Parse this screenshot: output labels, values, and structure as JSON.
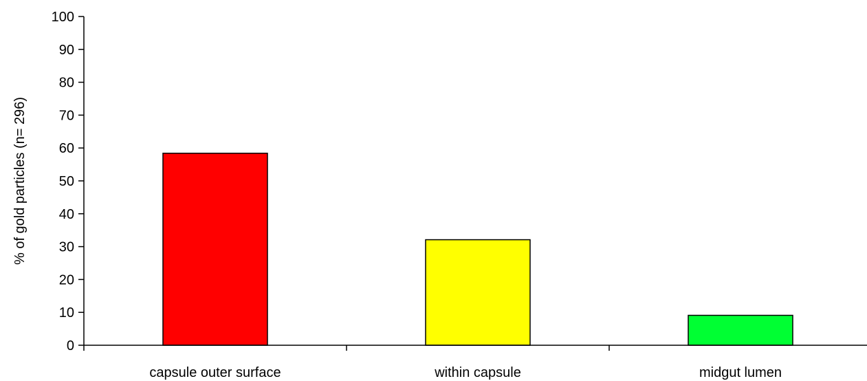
{
  "chart_data": {
    "type": "bar",
    "title": "",
    "xlabel": "",
    "ylabel": "% of gold particles (n= 296)",
    "categories": [
      "capsule outer surface",
      "within capsule",
      "midgut lumen"
    ],
    "values": [
      58.4,
      32.1,
      9.1
    ],
    "bar_colors": [
      "#ff0000",
      "#ffff00",
      "#00ff33"
    ],
    "ylim": [
      0,
      100
    ],
    "yticks": [
      0,
      10,
      20,
      30,
      40,
      50,
      60,
      70,
      80,
      90,
      100
    ],
    "grid": false,
    "legend": "none"
  }
}
